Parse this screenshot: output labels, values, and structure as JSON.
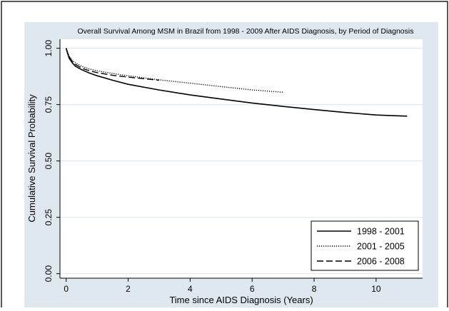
{
  "colors": {
    "background": "#dfe8ee",
    "plot_background": "#ffffff",
    "gridline": "#dfe8ee",
    "line": "#000000"
  },
  "chart_data": {
    "type": "line",
    "title": "Overall Survival Among MSM in Brazil from 1998 - 2009 After AIDS Diagnosis, by Period of Diagnosis",
    "xlabel": "Time since AIDS Diagnosis (Years)",
    "ylabel": "Cumulative Survival Probability",
    "xlim": [
      -0.2,
      11.5
    ],
    "ylim": [
      -0.02,
      1.04
    ],
    "x_ticks": [
      0,
      2,
      4,
      6,
      8,
      10
    ],
    "y_ticks": [
      0.0,
      0.25,
      0.5,
      0.75,
      1.0
    ],
    "x_tick_labels": [
      "0",
      "2",
      "4",
      "6",
      "8",
      "10"
    ],
    "y_tick_labels": [
      "0.00",
      "0.25",
      "0.50",
      "0.75",
      "1.00"
    ],
    "grid": true,
    "legend_position": "bottom-right",
    "series": [
      {
        "name": "1998 - 2001",
        "style": "solid",
        "x": [
          0,
          0.05,
          0.1,
          0.2,
          0.3,
          0.5,
          0.75,
          1,
          1.5,
          2,
          3,
          4,
          5,
          6,
          7,
          8,
          9,
          10,
          10.5,
          11
        ],
        "y": [
          1.0,
          0.975,
          0.955,
          0.935,
          0.92,
          0.905,
          0.89,
          0.878,
          0.858,
          0.84,
          0.815,
          0.793,
          0.775,
          0.757,
          0.742,
          0.728,
          0.715,
          0.704,
          0.701,
          0.699
        ]
      },
      {
        "name": "2001 - 2005",
        "style": "dotted",
        "x": [
          0,
          0.05,
          0.1,
          0.2,
          0.3,
          0.5,
          0.75,
          1,
          1.5,
          2,
          3,
          4,
          5,
          6,
          7
        ],
        "y": [
          1.0,
          0.98,
          0.965,
          0.945,
          0.935,
          0.92,
          0.908,
          0.9,
          0.888,
          0.878,
          0.86,
          0.845,
          0.83,
          0.815,
          0.805
        ]
      },
      {
        "name": "2006 - 2008",
        "style": "dashed",
        "x": [
          0,
          0.05,
          0.1,
          0.2,
          0.3,
          0.5,
          0.75,
          1,
          1.5,
          2,
          2.5,
          3
        ],
        "y": [
          1.0,
          0.978,
          0.962,
          0.94,
          0.928,
          0.912,
          0.9,
          0.892,
          0.88,
          0.872,
          0.865,
          0.858
        ]
      }
    ]
  }
}
